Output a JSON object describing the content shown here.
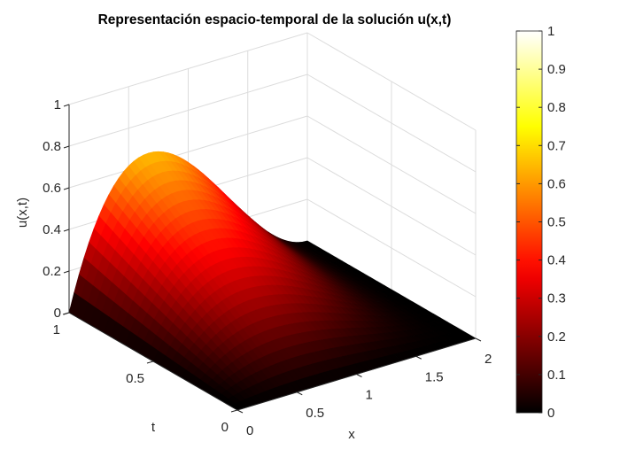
{
  "chart_data": {
    "type": "surface",
    "title": "Representación espacio-temporal de la solución u(x,t)",
    "xlabel": "x",
    "ylabel": "t",
    "zlabel": "u(x,t)",
    "xlim": [
      0,
      2
    ],
    "tlim": [
      0,
      1
    ],
    "zlim": [
      0,
      1
    ],
    "xticks": [
      "0",
      "0.5",
      "1",
      "1.5",
      "2"
    ],
    "tticks": [
      "0",
      "0.5",
      "1"
    ],
    "zticks": [
      "0",
      "0.2",
      "0.4",
      "0.6",
      "0.8",
      "1"
    ],
    "colormap": "hot",
    "clim": [
      0,
      1
    ],
    "colorbar_ticks": [
      "0",
      "0.1",
      "0.2",
      "0.3",
      "0.4",
      "0.5",
      "0.6",
      "0.7",
      "0.8",
      "0.9",
      "1"
    ],
    "surface_description_values": {
      "peak_u": 0.65,
      "peak_x": 0.67,
      "peak_t": 1,
      "u_at_t0": 0,
      "u_at_x0": 0,
      "u_at_x2": 0
    },
    "grid": true
  }
}
